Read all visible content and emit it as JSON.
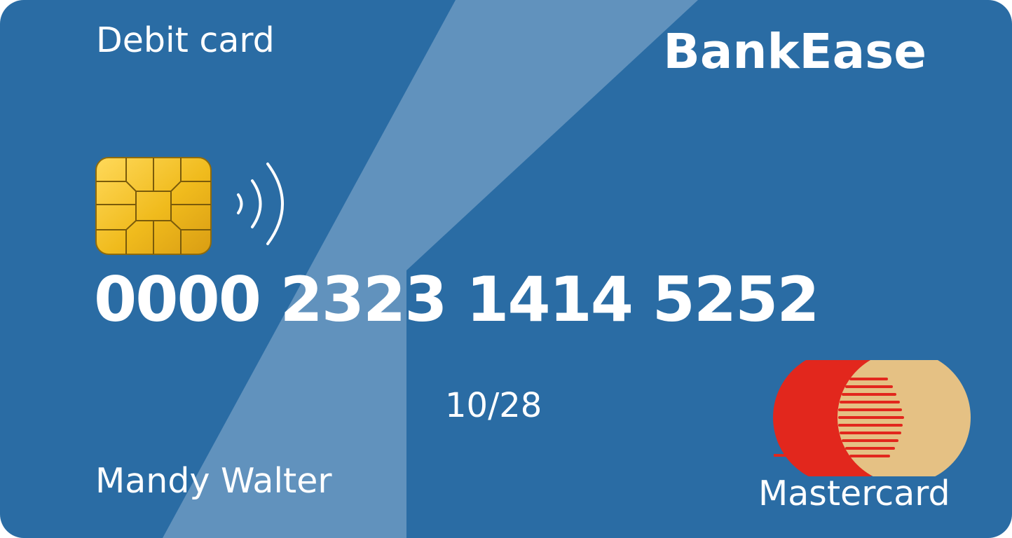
{
  "card": {
    "type_label": "Debit card",
    "brand_name": "BankEase",
    "number": "0000 2323 1414 5252",
    "expiry": "10/28",
    "holder_name": "Mandy Walter",
    "network_name": "Mastercard"
  },
  "icons": {
    "chip": "emv-chip-icon",
    "contactless": "contactless-icon",
    "network_logo": "mastercard-logo-icon"
  },
  "colors": {
    "card_background": "#2a6ca4",
    "band": "#6192bd",
    "text": "#ffffff",
    "chip_gold": "#f0bb1d",
    "mastercard_red": "#e2271d",
    "mastercard_tan": "#e5c184"
  }
}
